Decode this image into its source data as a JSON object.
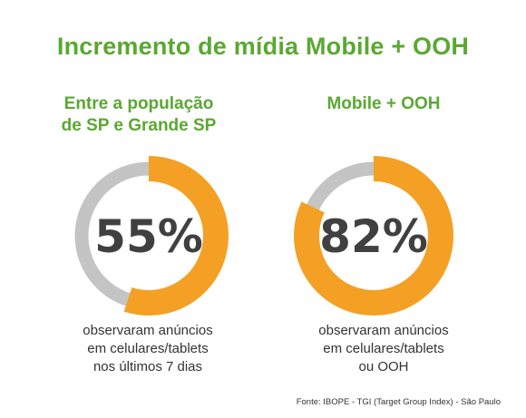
{
  "title": "Incremento de mídia Mobile + OOH",
  "colors": {
    "green": "#5aa832",
    "orange": "#f4a024",
    "gray": "#c4c4c4",
    "text": "#404040"
  },
  "chart_data": [
    {
      "type": "pie",
      "subtitle_lines": [
        "Entre a população",
        "de SP e Grande SP"
      ],
      "value": 55,
      "label": "55%",
      "caption_lines": [
        "observaram anúncios",
        "em celulares/tablets",
        "nos últimos 7 dias"
      ]
    },
    {
      "type": "pie",
      "subtitle_lines": [
        "Mobile + OOH"
      ],
      "value": 82,
      "label": "82%",
      "caption_lines": [
        "observaram anúncios",
        "em celulares/tablets",
        "ou OOH"
      ]
    }
  ],
  "source": "Fonte: IBOPE - TGI (Target Group Index) - São Paulo"
}
